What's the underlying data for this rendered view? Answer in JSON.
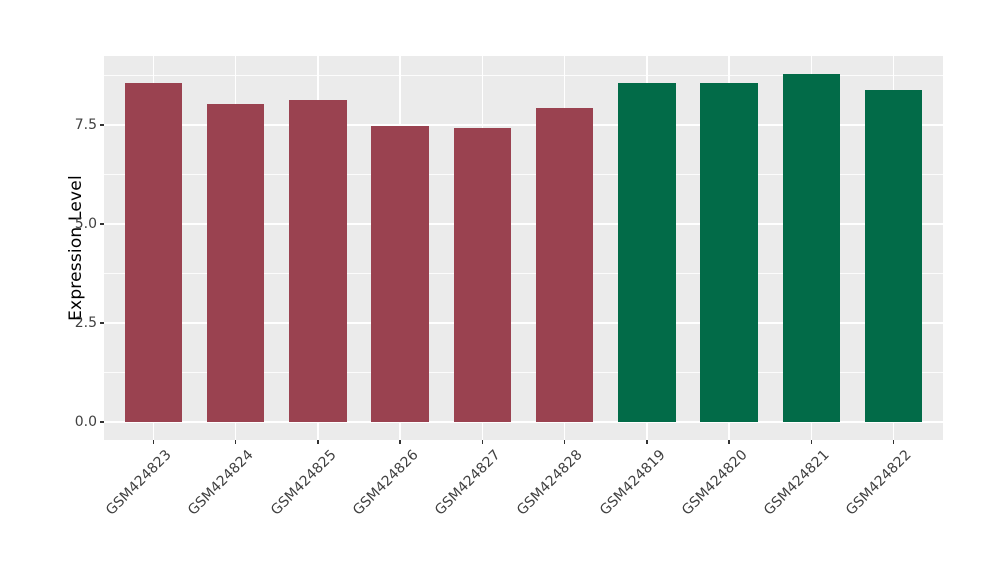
{
  "figure": {
    "background": "#ffffff",
    "panel_background": "#EBEBEB"
  },
  "chart_data": {
    "type": "bar",
    "title": "",
    "xlabel": "",
    "ylabel": "Expression Level",
    "legend_position": "none",
    "grid": "on",
    "categories": [
      "GSM424823",
      "GSM424824",
      "GSM424825",
      "GSM424826",
      "GSM424827",
      "GSM424828",
      "GSM424819",
      "GSM424820",
      "GSM424821",
      "GSM424822"
    ],
    "values": [
      8.55,
      8.04,
      8.14,
      7.47,
      7.42,
      7.93,
      8.57,
      8.55,
      8.8,
      8.38
    ],
    "groups": [
      "groupA",
      "groupA",
      "groupA",
      "groupA",
      "groupA",
      "groupA",
      "groupB",
      "groupB",
      "groupB",
      "groupB"
    ],
    "group_colors": {
      "groupA": "#9A4250",
      "groupB": "#026B48"
    },
    "bar_width_fraction": 0.7,
    "ylim": [
      -0.455,
      9.243
    ],
    "yticks": [
      {
        "value": 0.0,
        "label": "0.0"
      },
      {
        "value": 2.5,
        "label": "2.5"
      },
      {
        "value": 5.0,
        "label": "5.0"
      },
      {
        "value": 7.5,
        "label": "7.5"
      }
    ],
    "yticks_minor": [
      1.25,
      3.75,
      6.25,
      8.75
    ],
    "grid_major_color": "#ffffff",
    "grid_minor_color": "#ffffff",
    "tick_color": "#333333",
    "axis_text_color": "#404040",
    "axis_title_color": "#000000"
  }
}
